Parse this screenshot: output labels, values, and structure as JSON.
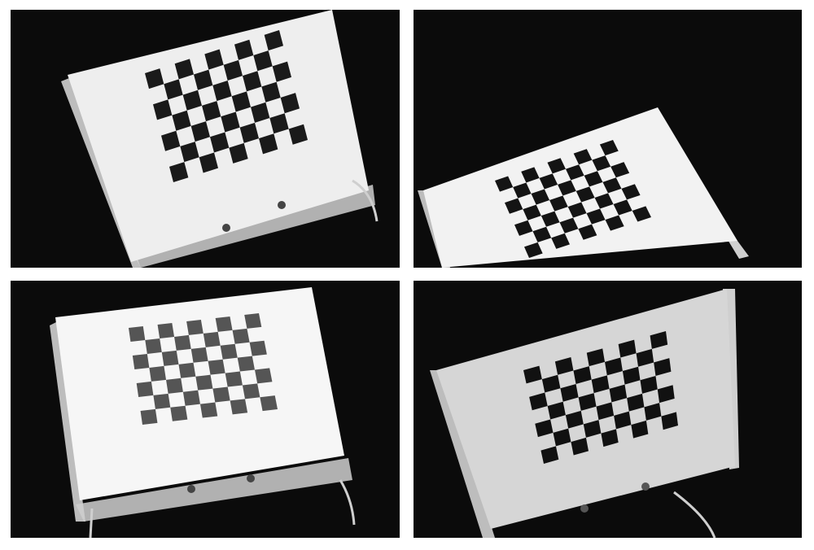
{
  "photos": [
    {
      "name": "photo-top-left",
      "board_shade": "#1a1a1a",
      "card": "#eeeeee"
    },
    {
      "name": "photo-top-right",
      "board_shade": "#141414",
      "card": "#f2f2f2"
    },
    {
      "name": "photo-bottom-left",
      "board_shade": "#555555",
      "card": "#f6f6f6"
    },
    {
      "name": "photo-bottom-right",
      "board_shade": "#111111",
      "card": "#d6d6d6"
    }
  ],
  "checkerboard": {
    "cols": 9,
    "rows": 7
  },
  "colors": {
    "background": "#0b0b0b",
    "acrylic": "#cfcfcf"
  }
}
